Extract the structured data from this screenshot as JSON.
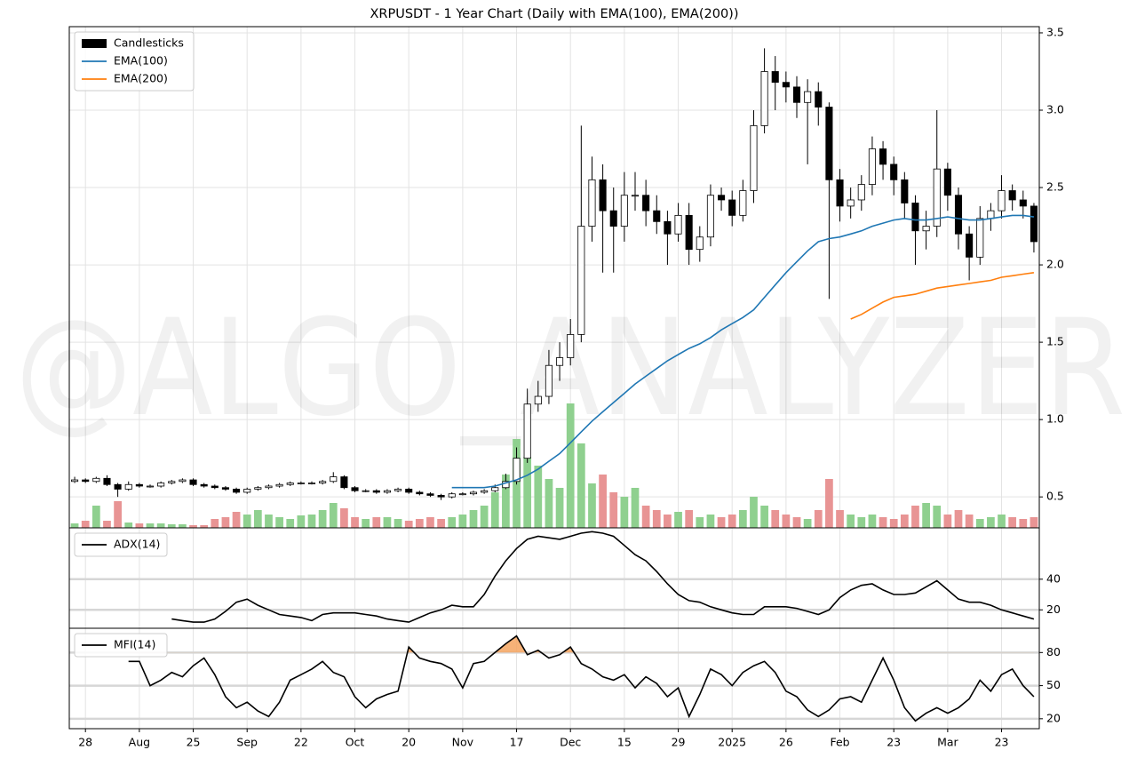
{
  "chart_data": [
    {
      "type": "candlestick",
      "title": "XRPUSDT - 1 Year Chart (Daily with EMA(100), EMA(200))",
      "watermark": "@ALGO_ANALYZER",
      "candle_name": "Candlesticks",
      "legend": "upper left",
      "grid": true,
      "volume_up_color": "#8fd08f",
      "volume_down_color": "#e89494",
      "open": [
        0.6,
        0.61,
        0.6,
        0.62,
        0.58,
        0.55,
        0.58,
        0.57,
        0.57,
        0.59,
        0.6,
        0.61,
        0.58,
        0.57,
        0.56,
        0.55,
        0.53,
        0.55,
        0.56,
        0.57,
        0.58,
        0.59,
        0.59,
        0.59,
        0.6,
        0.63,
        0.56,
        0.54,
        0.54,
        0.53,
        0.54,
        0.55,
        0.53,
        0.52,
        0.51,
        0.5,
        0.52,
        0.52,
        0.53,
        0.54,
        0.56,
        0.6,
        0.75,
        1.1,
        1.15,
        1.35,
        1.4,
        1.55,
        2.25,
        2.55,
        2.35,
        2.25,
        2.45,
        2.45,
        2.35,
        2.28,
        2.2,
        2.32,
        2.1,
        2.18,
        2.45,
        2.42,
        2.32,
        2.48,
        2.9,
        3.25,
        3.18,
        3.15,
        3.05,
        3.12,
        3.02,
        2.55,
        2.38,
        2.42,
        2.52,
        2.75,
        2.65,
        2.55,
        2.4,
        2.22,
        2.25,
        2.62,
        2.45,
        2.2,
        2.05,
        2.3,
        2.35,
        2.48,
        2.42,
        2.38
      ],
      "high": [
        0.63,
        0.62,
        0.63,
        0.64,
        0.59,
        0.6,
        0.59,
        0.58,
        0.6,
        0.61,
        0.62,
        0.62,
        0.59,
        0.58,
        0.57,
        0.56,
        0.56,
        0.57,
        0.58,
        0.59,
        0.6,
        0.6,
        0.6,
        0.61,
        0.66,
        0.64,
        0.57,
        0.55,
        0.55,
        0.55,
        0.56,
        0.56,
        0.54,
        0.53,
        0.52,
        0.53,
        0.53,
        0.54,
        0.55,
        0.58,
        0.65,
        0.82,
        1.2,
        1.25,
        1.45,
        1.5,
        1.65,
        2.9,
        2.7,
        2.65,
        2.5,
        2.6,
        2.6,
        2.55,
        2.45,
        2.35,
        2.4,
        2.4,
        2.25,
        2.52,
        2.5,
        2.48,
        2.55,
        3.0,
        3.4,
        3.35,
        3.25,
        3.22,
        3.2,
        3.18,
        3.05,
        2.62,
        2.5,
        2.58,
        2.83,
        2.8,
        2.7,
        2.6,
        2.45,
        2.35,
        3.0,
        2.66,
        2.5,
        2.25,
        2.38,
        2.4,
        2.58,
        2.52,
        2.48,
        2.4
      ],
      "low": [
        0.59,
        0.59,
        0.59,
        0.57,
        0.5,
        0.54,
        0.56,
        0.56,
        0.56,
        0.58,
        0.59,
        0.57,
        0.56,
        0.55,
        0.54,
        0.52,
        0.52,
        0.54,
        0.55,
        0.56,
        0.57,
        0.58,
        0.58,
        0.58,
        0.59,
        0.55,
        0.53,
        0.53,
        0.52,
        0.52,
        0.53,
        0.52,
        0.51,
        0.5,
        0.48,
        0.49,
        0.51,
        0.51,
        0.52,
        0.53,
        0.55,
        0.58,
        0.72,
        1.05,
        1.1,
        1.25,
        1.35,
        1.5,
        2.15,
        1.95,
        1.95,
        2.15,
        2.35,
        2.25,
        2.2,
        2.0,
        2.15,
        2.0,
        2.02,
        2.12,
        2.35,
        2.25,
        2.28,
        2.4,
        2.85,
        3.0,
        3.05,
        2.95,
        2.65,
        2.9,
        1.78,
        2.28,
        2.3,
        2.35,
        2.45,
        2.55,
        2.45,
        2.3,
        2.0,
        2.1,
        2.18,
        2.35,
        2.1,
        1.9,
        2.0,
        2.22,
        2.3,
        2.35,
        2.3,
        2.08
      ],
      "close": [
        0.61,
        0.6,
        0.62,
        0.58,
        0.55,
        0.58,
        0.57,
        0.57,
        0.59,
        0.6,
        0.61,
        0.58,
        0.57,
        0.56,
        0.55,
        0.53,
        0.55,
        0.56,
        0.57,
        0.58,
        0.59,
        0.59,
        0.59,
        0.6,
        0.63,
        0.56,
        0.54,
        0.54,
        0.53,
        0.54,
        0.55,
        0.53,
        0.52,
        0.51,
        0.5,
        0.52,
        0.52,
        0.53,
        0.54,
        0.56,
        0.6,
        0.75,
        1.1,
        1.15,
        1.35,
        1.4,
        1.55,
        2.25,
        2.55,
        2.35,
        2.25,
        2.45,
        2.45,
        2.35,
        2.28,
        2.2,
        2.32,
        2.1,
        2.18,
        2.45,
        2.42,
        2.32,
        2.48,
        2.9,
        3.25,
        3.18,
        3.15,
        3.05,
        3.12,
        3.02,
        2.55,
        2.38,
        2.42,
        2.52,
        2.75,
        2.65,
        2.55,
        2.4,
        2.22,
        2.25,
        2.62,
        2.45,
        2.2,
        2.05,
        2.3,
        2.35,
        2.48,
        2.42,
        2.38,
        2.15
      ],
      "volume": [
        5,
        8,
        25,
        8,
        30,
        6,
        5,
        5,
        5,
        4,
        4,
        3,
        3,
        10,
        12,
        18,
        15,
        20,
        15,
        12,
        10,
        14,
        15,
        20,
        28,
        22,
        12,
        10,
        12,
        12,
        10,
        8,
        10,
        12,
        10,
        12,
        15,
        20,
        25,
        40,
        60,
        100,
        80,
        70,
        55,
        45,
        140,
        95,
        50,
        60,
        40,
        35,
        45,
        25,
        20,
        15,
        18,
        20,
        12,
        15,
        12,
        15,
        20,
        35,
        25,
        20,
        15,
        12,
        10,
        20,
        55,
        20,
        15,
        12,
        15,
        12,
        10,
        15,
        25,
        28,
        25,
        15,
        20,
        15,
        10,
        12,
        15,
        12,
        10,
        12
      ],
      "series": [
        {
          "name": "EMA(100)",
          "color": "#1f77b4",
          "values": [
            null,
            null,
            null,
            null,
            null,
            null,
            null,
            null,
            null,
            null,
            null,
            null,
            null,
            null,
            null,
            null,
            null,
            null,
            null,
            null,
            null,
            null,
            null,
            null,
            null,
            null,
            null,
            null,
            null,
            null,
            null,
            null,
            null,
            null,
            null,
            0.56,
            0.56,
            0.56,
            0.56,
            0.57,
            0.59,
            0.61,
            0.64,
            0.68,
            0.73,
            0.78,
            0.85,
            0.92,
            0.99,
            1.05,
            1.11,
            1.17,
            1.23,
            1.28,
            1.33,
            1.38,
            1.42,
            1.46,
            1.49,
            1.53,
            1.58,
            1.62,
            1.66,
            1.71,
            1.79,
            1.87,
            1.95,
            2.02,
            2.09,
            2.15,
            2.17,
            2.18,
            2.2,
            2.22,
            2.25,
            2.27,
            2.29,
            2.3,
            2.29,
            2.29,
            2.3,
            2.31,
            2.3,
            2.29,
            2.29,
            2.3,
            2.31,
            2.32,
            2.32,
            2.31
          ]
        },
        {
          "name": "EMA(200)",
          "color": "#ff7f0e",
          "values": [
            null,
            null,
            null,
            null,
            null,
            null,
            null,
            null,
            null,
            null,
            null,
            null,
            null,
            null,
            null,
            null,
            null,
            null,
            null,
            null,
            null,
            null,
            null,
            null,
            null,
            null,
            null,
            null,
            null,
            null,
            null,
            null,
            null,
            null,
            null,
            null,
            null,
            null,
            null,
            null,
            null,
            null,
            null,
            null,
            null,
            null,
            null,
            null,
            null,
            null,
            null,
            null,
            null,
            null,
            null,
            null,
            null,
            null,
            null,
            null,
            null,
            null,
            null,
            null,
            null,
            null,
            null,
            null,
            null,
            null,
            null,
            null,
            1.65,
            1.68,
            1.72,
            1.76,
            1.79,
            1.8,
            1.81,
            1.83,
            1.85,
            1.86,
            1.87,
            1.88,
            1.89,
            1.9,
            1.92,
            1.93,
            1.94,
            1.95
          ]
        }
      ],
      "ylim": [
        0.3,
        3.54
      ],
      "yticks": [
        0.5,
        {
          "value": 1.0,
          "label": "1.0"
        },
        1.5,
        {
          "value": 2.0,
          "label": "2.0"
        },
        2.5,
        {
          "value": 3.0,
          "label": "3.0"
        },
        3.5
      ]
    },
    {
      "type": "line",
      "legend": "upper left",
      "grid": true,
      "series": [
        {
          "name": "ADX(14)",
          "color": "#000000",
          "values": [
            null,
            null,
            null,
            null,
            null,
            null,
            null,
            null,
            null,
            14,
            13,
            12,
            12,
            14,
            19,
            25,
            27,
            23,
            20,
            17,
            16,
            15,
            13,
            17,
            18,
            18,
            18,
            17,
            16,
            14,
            13,
            12,
            15,
            18,
            20,
            23,
            22,
            22,
            30,
            42,
            52,
            60,
            66,
            68,
            67,
            66,
            68,
            70,
            71,
            70,
            68,
            62,
            56,
            52,
            45,
            37,
            30,
            26,
            25,
            22,
            20,
            18,
            17,
            17,
            22,
            22,
            22,
            21,
            19,
            17,
            20,
            28,
            33,
            36,
            37,
            33,
            30,
            30,
            31,
            35,
            39,
            33,
            27,
            25,
            25,
            23,
            20,
            18,
            16,
            14
          ]
        }
      ],
      "ylim": [
        8,
        73.5
      ],
      "yticks": [
        20,
        40
      ]
    },
    {
      "type": "line",
      "legend": "upper left",
      "grid": true,
      "overbought_color": "#f4a460",
      "categories": [
        null,
        "28",
        null,
        null,
        null,
        null,
        "Aug",
        null,
        null,
        null,
        null,
        "25",
        null,
        null,
        null,
        null,
        "Sep",
        null,
        null,
        null,
        null,
        "22",
        null,
        null,
        null,
        null,
        "Oct",
        null,
        null,
        null,
        null,
        "20",
        null,
        null,
        null,
        null,
        "Nov",
        null,
        null,
        null,
        null,
        "17",
        null,
        null,
        null,
        null,
        "Dec",
        null,
        null,
        null,
        null,
        "15",
        null,
        null,
        null,
        null,
        "29",
        null,
        null,
        null,
        null,
        "2025",
        null,
        null,
        null,
        null,
        "26",
        null,
        null,
        null,
        null,
        "Feb",
        null,
        null,
        null,
        null,
        "23",
        null,
        null,
        null,
        null,
        "Mar",
        null,
        null,
        null,
        null,
        "23",
        null,
        null,
        null
      ],
      "series": [
        {
          "name": "MFI(14)",
          "color": "#000000",
          "values": [
            null,
            null,
            null,
            null,
            null,
            72,
            72,
            50,
            55,
            62,
            58,
            68,
            75,
            60,
            40,
            30,
            35,
            27,
            22,
            35,
            55,
            60,
            65,
            72,
            62,
            58,
            40,
            30,
            38,
            42,
            45,
            85,
            75,
            72,
            70,
            65,
            48,
            70,
            72,
            80,
            88,
            95,
            78,
            82,
            75,
            78,
            85,
            70,
            65,
            58,
            55,
            60,
            48,
            58,
            52,
            40,
            48,
            22,
            42,
            65,
            60,
            50,
            62,
            68,
            72,
            62,
            45,
            40,
            28,
            22,
            28,
            38,
            40,
            35,
            55,
            75,
            55,
            30,
            18,
            25,
            30,
            25,
            30,
            38,
            55,
            45,
            60,
            65,
            50,
            40
          ]
        }
      ],
      "ylim": [
        11,
        102
      ],
      "yticks": [
        20,
        50,
        80
      ]
    }
  ]
}
